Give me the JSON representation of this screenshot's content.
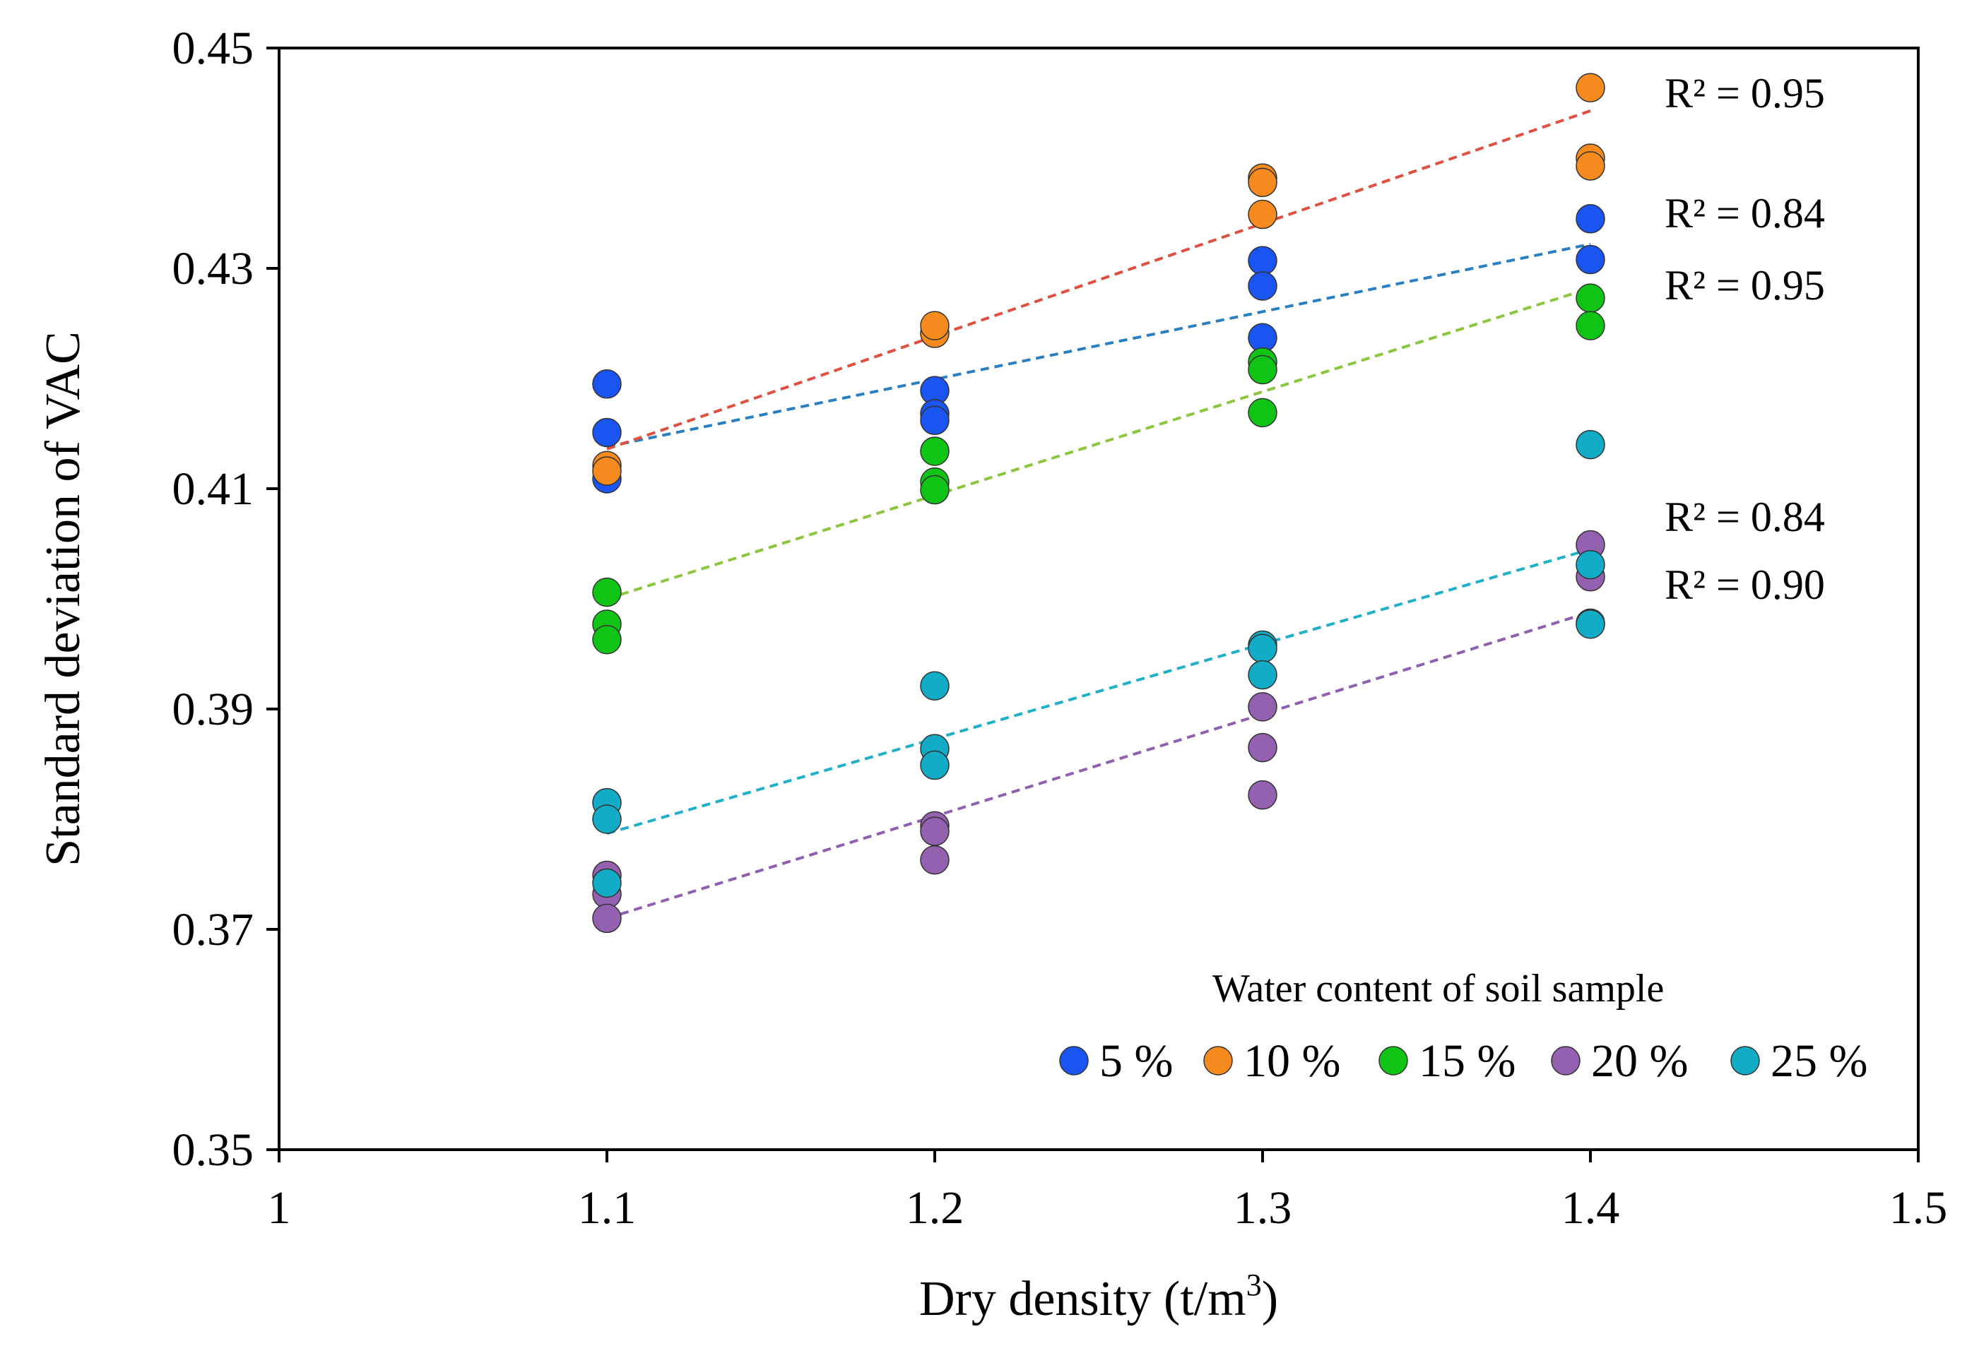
{
  "chart_data": {
    "type": "scatter",
    "title": "",
    "xlabel": "Dry density (t/m",
    "xlabel_superscript": "3",
    "xlabel_suffix": ")",
    "ylabel": "Standard deviation of VAC",
    "xlim": [
      1,
      1.5
    ],
    "ylim": [
      0.35,
      0.45
    ],
    "x_ticks": [
      "1",
      "1.1",
      "1.2",
      "1.3",
      "1.4",
      "1.5"
    ],
    "y_ticks": [
      "0.35",
      "0.37",
      "0.39",
      "0.41",
      "0.43",
      "0.45"
    ],
    "grid": false,
    "legend": {
      "title": "Water content of soil sample",
      "placement": "bottom-right"
    },
    "series": [
      {
        "name": "5 %",
        "color": "#1a55f2",
        "points": [
          [
            1.1,
            0.4195
          ],
          [
            1.1,
            0.4151
          ],
          [
            1.1,
            0.4109
          ],
          [
            1.2,
            0.4189
          ],
          [
            1.2,
            0.4168
          ],
          [
            1.2,
            0.4162
          ],
          [
            1.3,
            0.4307
          ],
          [
            1.3,
            0.4284
          ],
          [
            1.3,
            0.4237
          ],
          [
            1.4,
            0.4345
          ],
          [
            1.4,
            0.4308
          ]
        ],
        "trend": {
          "x": [
            1.1,
            1.4
          ],
          "y": [
            0.4138,
            0.4322
          ],
          "color": "#2a7fc0",
          "r2": "R² = 0.84"
        }
      },
      {
        "name": "10 %",
        "color": "#f58a1f",
        "points": [
          [
            1.1,
            0.4121
          ],
          [
            1.1,
            0.4116
          ],
          [
            1.2,
            0.4241
          ],
          [
            1.2,
            0.4248
          ],
          [
            1.3,
            0.4382
          ],
          [
            1.3,
            0.4378
          ],
          [
            1.3,
            0.4349
          ],
          [
            1.4,
            0.4464
          ],
          [
            1.4,
            0.44
          ],
          [
            1.4,
            0.4393
          ]
        ],
        "trend": {
          "x": [
            1.1,
            1.4
          ],
          "y": [
            0.4136,
            0.4443
          ],
          "color": "#e05040",
          "r2": "R² = 0.95"
        }
      },
      {
        "name": "15 %",
        "color": "#0fc414",
        "points": [
          [
            1.1,
            0.4006
          ],
          [
            1.1,
            0.3977
          ],
          [
            1.1,
            0.3963
          ],
          [
            1.2,
            0.4134
          ],
          [
            1.2,
            0.4106
          ],
          [
            1.2,
            0.4099
          ],
          [
            1.3,
            0.4215
          ],
          [
            1.3,
            0.4208
          ],
          [
            1.3,
            0.4169
          ],
          [
            1.4,
            0.4273
          ],
          [
            1.4,
            0.4248
          ]
        ],
        "trend": {
          "x": [
            1.1,
            1.4
          ],
          "y": [
            0.4,
            0.4282
          ],
          "color": "#8cc63f",
          "r2": "R² = 0.95"
        }
      },
      {
        "name": "20 %",
        "color": "#9460b0",
        "points": [
          [
            1.1,
            0.3749
          ],
          [
            1.1,
            0.3732
          ],
          [
            1.1,
            0.371
          ],
          [
            1.2,
            0.3794
          ],
          [
            1.2,
            0.3789
          ],
          [
            1.2,
            0.3763
          ],
          [
            1.3,
            0.3902
          ],
          [
            1.3,
            0.3865
          ],
          [
            1.3,
            0.3822
          ],
          [
            1.4,
            0.4049
          ],
          [
            1.4,
            0.402
          ],
          [
            1.4,
            0.3978
          ]
        ],
        "trend": {
          "x": [
            1.1,
            1.4
          ],
          "y": [
            0.371,
            0.3988
          ],
          "color": "#9060b0",
          "r2": "R² = 0.90"
        }
      },
      {
        "name": "25 %",
        "color": "#13acc6",
        "points": [
          [
            1.1,
            0.3815
          ],
          [
            1.1,
            0.38
          ],
          [
            1.1,
            0.3742
          ],
          [
            1.2,
            0.3921
          ],
          [
            1.2,
            0.3864
          ],
          [
            1.2,
            0.3849
          ],
          [
            1.3,
            0.3958
          ],
          [
            1.3,
            0.3955
          ],
          [
            1.3,
            0.3931
          ],
          [
            1.4,
            0.414
          ],
          [
            1.4,
            0.4031
          ],
          [
            1.4,
            0.3977
          ]
        ],
        "trend": {
          "x": [
            1.1,
            1.4
          ],
          "y": [
            0.3787,
            0.4045
          ],
          "color": "#20b0c8",
          "r2": "R² = 0.84"
        }
      }
    ]
  }
}
